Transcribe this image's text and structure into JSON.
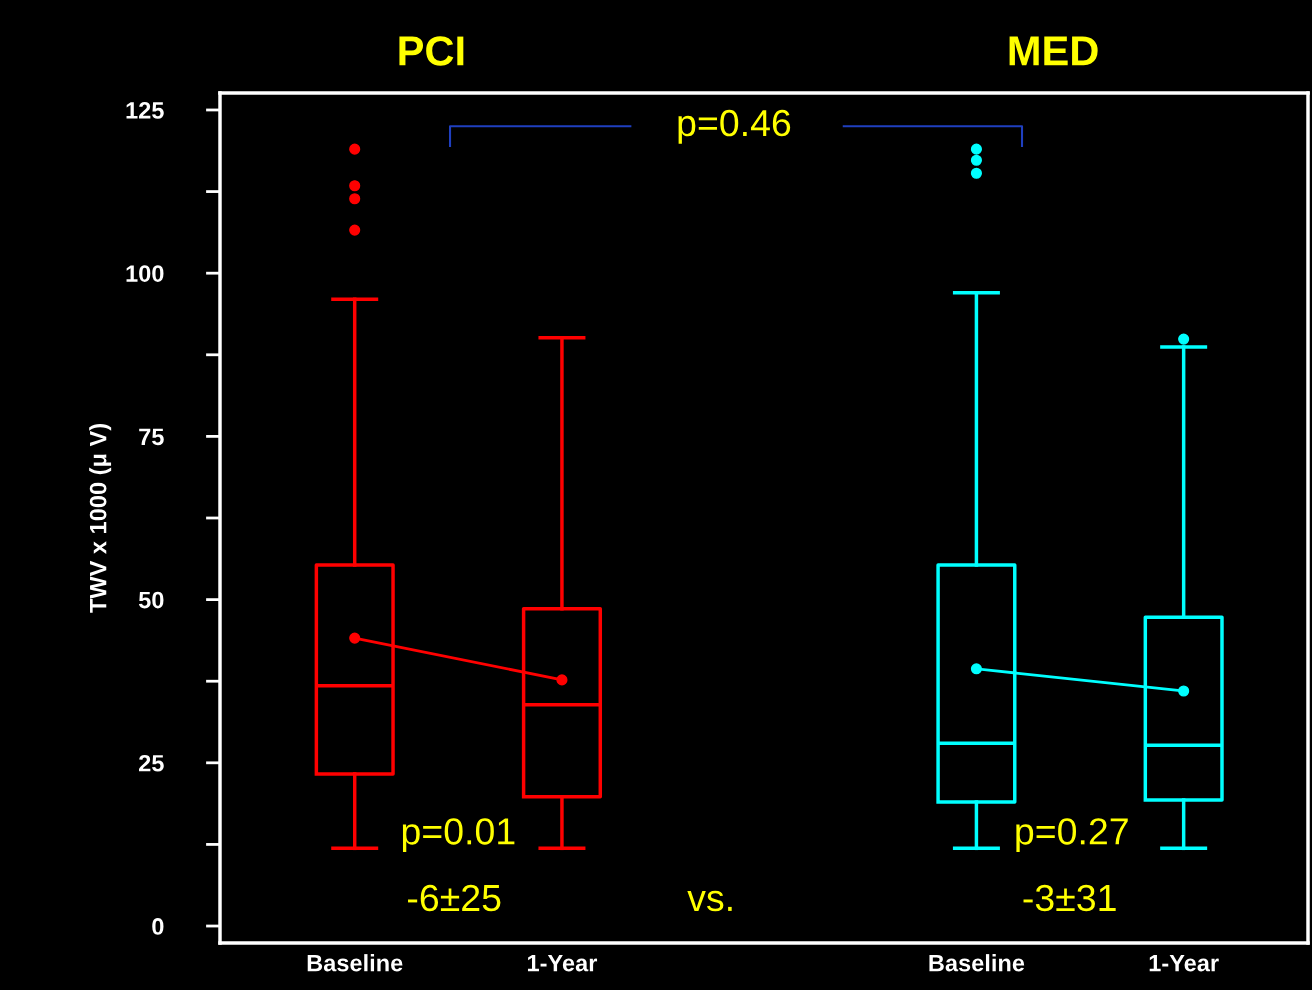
{
  "chart_data": {
    "type": "box",
    "ylabel": "TWV x 1000 (μ V)",
    "categories": [
      "Baseline",
      "1-Year",
      null,
      "Baseline",
      "1-Year"
    ],
    "ylim": [
      -2.6,
      127.6
    ],
    "yticks": [
      0,
      {
        "value": 12.5,
        "label": null
      },
      25,
      {
        "value": 37.5,
        "label": null
      },
      50,
      {
        "value": 62.5,
        "label": null
      },
      75,
      {
        "value": 87.5,
        "label": null
      },
      100,
      {
        "value": 112.5,
        "label": null
      },
      125
    ],
    "grid": false,
    "series": [
      {
        "color": "#ff0000",
        "boxes": [
          {
            "low": 11.9,
            "q1": 23.3,
            "median": 36.8,
            "q3": 55.3,
            "high": 96.0,
            "outliers": [
              119.0,
              113.4,
              111.4,
              106.6
            ]
          },
          {
            "low": 11.9,
            "q1": 19.8,
            "median": 33.9,
            "q3": 48.6,
            "high": 90.1
          },
          null,
          null,
          null
        ]
      },
      {
        "color": "#00ffff",
        "boxes": [
          null,
          null,
          null,
          {
            "low": 11.9,
            "q1": 19.0,
            "median": 28.0,
            "q3": 55.3,
            "high": 97.0,
            "outliers": [
              119.0,
              117.3,
              115.3
            ]
          },
          {
            "low": 11.9,
            "q1": 19.3,
            "median": 27.7,
            "q3": 47.3,
            "high": 88.7,
            "outliers": [
              89.9
            ]
          }
        ]
      },
      {
        "type": "line",
        "color": "#ff0000",
        "marker": "circle",
        "values": [
          44.1,
          37.7,
          null,
          null,
          null
        ]
      },
      {
        "type": "line",
        "color": "#00ffff",
        "marker": "circle",
        "values": [
          null,
          null,
          null,
          39.4,
          36.0
        ]
      }
    ],
    "annotations": [
      "PCI",
      "MED",
      "p=0.46",
      "p=0.01",
      "-6±25",
      "vs.",
      "p=0.27",
      "-3±31"
    ]
  }
}
